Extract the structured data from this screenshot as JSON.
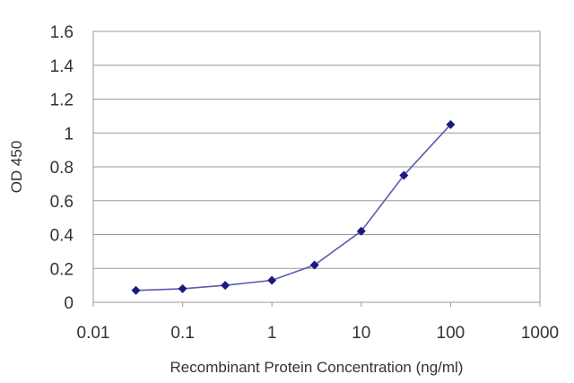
{
  "chart_data": {
    "type": "line",
    "title": "",
    "xlabel": "Recombinant Protein Concentration (ng/ml)",
    "ylabel": "OD 450",
    "x_scale": "log",
    "xlim": [
      0.01,
      1000
    ],
    "ylim": [
      0,
      1.6
    ],
    "x_ticks": [
      0.01,
      0.1,
      1,
      10,
      100,
      1000
    ],
    "x_tick_labels": [
      "0.01",
      "0.1",
      "1",
      "10",
      "100",
      "1000"
    ],
    "y_ticks": [
      0,
      0.2,
      0.4,
      0.6,
      0.8,
      1,
      1.2,
      1.4,
      1.6
    ],
    "y_tick_labels": [
      "0",
      "0.2",
      "0.4",
      "0.6",
      "0.8",
      "1",
      "1.2",
      "1.4",
      "1.6"
    ],
    "grid": "horizontal",
    "legend": "none",
    "series": [
      {
        "x": [
          0.03,
          0.1,
          0.3,
          1,
          3,
          10,
          30,
          100
        ],
        "y": [
          0.07,
          0.08,
          0.1,
          0.13,
          0.22,
          0.42,
          0.75,
          1.05
        ]
      }
    ],
    "colors": {
      "line": "#5b5bb0",
      "marker": "#1a1a80",
      "grid": "#9a9a9a",
      "frame": "#9a9a9a"
    }
  }
}
